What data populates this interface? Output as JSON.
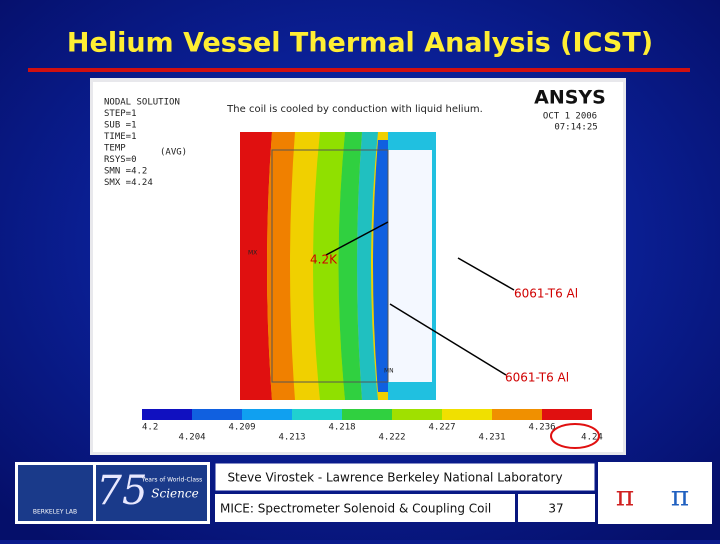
{
  "title": "Helium Vessel Thermal Analysis (ICST)",
  "plot": {
    "header_lines": [
      "NODAL SOLUTION",
      "STEP=1",
      "SUB =1",
      "TIME=1",
      "TEMP",
      "RSYS=0",
      "SMN =4.2",
      "SMX =4.24"
    ],
    "avg": "(AVG)",
    "note": "The coil is cooled by conduction with liquid helium.",
    "logo": "ANSYS",
    "date": "OCT  1 2006",
    "time": "07:14:25",
    "mx": "MX",
    "mn": "MN",
    "labels": [
      "4.2K",
      "6061-T6 Al",
      "6061-T6 Al"
    ],
    "colorbar": [
      "4.2",
      "4.204",
      "4.209",
      "4.213",
      "4.218",
      "4.222",
      "4.227",
      "4.231",
      "4.236",
      "4.24"
    ]
  },
  "footer": {
    "author": "Steve Virostek - Lawrence Berkeley National Laboratory",
    "project": "MICE: Spectrometer Solenoid & Coupling Coil",
    "page": "37",
    "lab": "BERKELEY LAB",
    "anniversary": "75",
    "anniversary_text": "Years of World-Class",
    "science": "Science"
  }
}
